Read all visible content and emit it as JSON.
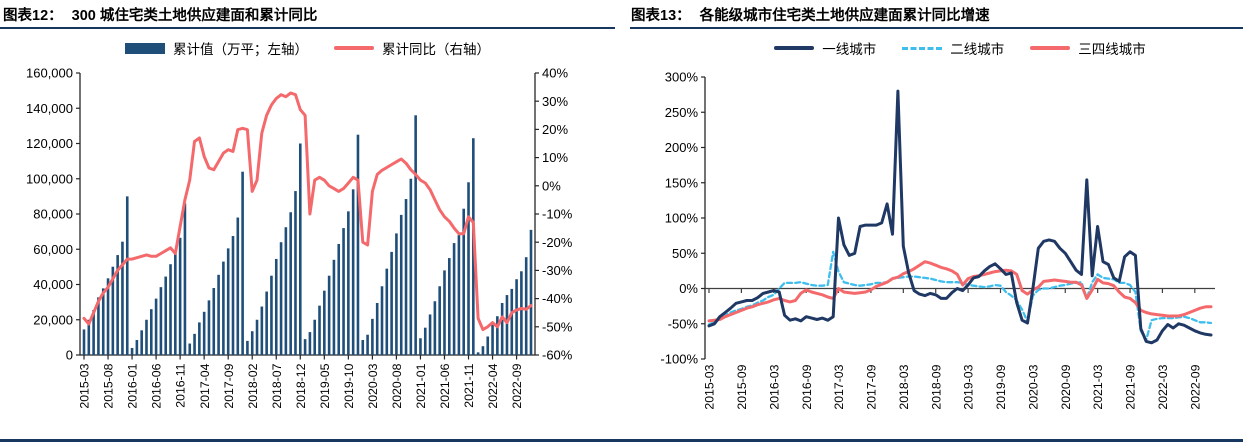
{
  "page": {
    "background": "#ffffff",
    "bottom_rule_color": "#17375e",
    "title_rule_color": "#17375e"
  },
  "panels": [
    {
      "heading": "图表12：",
      "title": "300 城住宅类土地供应建面和累计同比"
    },
    {
      "heading": "图表13：",
      "title": "各能级城市住宅类土地供应建面累计同比增速"
    }
  ],
  "chart_data": [
    {
      "id": "fig12",
      "type": "bar+line",
      "title": "300 城住宅类土地供应建面和累计同比",
      "x_start": "2015-03",
      "x_end": "2022-12",
      "freq": "monthly",
      "n_points": 94,
      "x_tick_every": 5,
      "x_tick_labels": [
        "2015-03",
        "2015-08",
        "2016-01",
        "2016-06",
        "2016-11",
        "2017-04",
        "2017-09",
        "2018-02",
        "2018-07",
        "2018-12",
        "2019-05",
        "2019-10",
        "2020-03",
        "2020-08",
        "2021-01",
        "2021-06",
        "2021-11",
        "2022-04",
        "2022-09"
      ],
      "left_axis": {
        "min": 0,
        "max": 160000,
        "step": 20000,
        "tick_labels": [
          "0",
          "20,000",
          "40,000",
          "60,000",
          "80,000",
          "100,000",
          "120,000",
          "140,000",
          "160,000"
        ]
      },
      "right_axis": {
        "min": -60,
        "max": 40,
        "step": 10,
        "tick_labels": [
          "-60%",
          "-50%",
          "-40%",
          "-30%",
          "-20%",
          "-10%",
          "0%",
          "10%",
          "20%",
          "30%",
          "40%"
        ]
      },
      "legend_position": "top",
      "grid": false,
      "series": [
        {
          "name": "累计值（万平；左轴）",
          "type": "bar",
          "axis": "left",
          "color": "#1F4E79",
          "values": [
            14500,
            20000,
            25500,
            32700,
            37800,
            43500,
            50100,
            56700,
            64300,
            90000,
            4000,
            8500,
            14000,
            20000,
            26000,
            32000,
            38500,
            44500,
            51500,
            57500,
            66500,
            86000,
            6500,
            12000,
            18500,
            24500,
            31000,
            38000,
            45500,
            53000,
            60500,
            67500,
            78000,
            104000,
            8000,
            13500,
            20000,
            27500,
            36000,
            45000,
            54500,
            64000,
            72500,
            81000,
            93000,
            120000,
            9000,
            13000,
            20000,
            28000,
            36500,
            45000,
            54000,
            63000,
            72000,
            81500,
            94000,
            125000,
            8500,
            11500,
            20500,
            29500,
            39000,
            49000,
            58500,
            69000,
            79500,
            88500,
            100000,
            136000,
            9500,
            15500,
            23000,
            30500,
            39000,
            48000,
            55000,
            63500,
            68000,
            83000,
            98000,
            123000,
            1500,
            5000,
            10500,
            17000,
            22000,
            29500,
            34000,
            37500,
            43000,
            47500,
            55500,
            71000
          ]
        },
        {
          "name": "累计同比（右轴）",
          "type": "line",
          "axis": "right",
          "color": "#F4696B",
          "values": [
            -47,
            -49,
            -45,
            -41,
            -38,
            -36,
            -33,
            -30,
            -28,
            -26,
            -26,
            -25.5,
            -25,
            -24.5,
            -25,
            -25,
            -24,
            -23,
            -22,
            -24,
            -14.5,
            -5,
            2,
            15.7,
            17,
            10.4,
            6.3,
            5.7,
            8.6,
            11.6,
            12.8,
            12.2,
            19.9,
            20.4,
            19.9,
            -2,
            2,
            18.7,
            25,
            28.7,
            31,
            32.3,
            31.6,
            32.9,
            32.3,
            27,
            25,
            -10,
            2,
            3,
            2,
            0,
            -1,
            -2,
            -1,
            1,
            3,
            2,
            -20,
            -21,
            -2,
            4,
            5.5,
            6.5,
            7.5,
            8.5,
            9.5,
            8,
            5.7,
            4,
            2,
            1,
            -1.4,
            -5,
            -8.5,
            -11,
            -12.6,
            -15,
            -17,
            -17,
            -11,
            -13,
            -47,
            -51,
            -50,
            -48.5,
            -50,
            -46.5,
            -48.5,
            -45,
            -44,
            -43.5,
            -43.8,
            -42.5
          ]
        }
      ]
    },
    {
      "id": "fig13",
      "type": "line",
      "title": "各能级城市住宅类土地供应建面累计同比增速",
      "x_start": "2015-03",
      "x_end": "2022-12",
      "freq": "monthly",
      "n_points": 94,
      "x_tick_every": 6,
      "x_tick_labels": [
        "2015-03",
        "2015-09",
        "2016-03",
        "2016-09",
        "2017-03",
        "2017-09",
        "2018-03",
        "2018-09",
        "2019-03",
        "2019-09",
        "2020-03",
        "2020-09",
        "2021-03",
        "2021-09",
        "2022-03",
        "2022-09"
      ],
      "y_axis": {
        "min": -100,
        "max": 300,
        "step": 50,
        "unit": "%",
        "tick_labels": [
          "-100%",
          "-50%",
          "0%",
          "50%",
          "100%",
          "150%",
          "200%",
          "250%",
          "300%"
        ]
      },
      "zero_line": true,
      "grid": false,
      "legend_position": "top",
      "series": [
        {
          "name": "一线城市",
          "type": "line",
          "style": "solid",
          "color": "#1F3864",
          "values": [
            -53,
            -50,
            -40,
            -34,
            -28,
            -21,
            -19,
            -17,
            -17,
            -13,
            -7,
            -5,
            -3,
            -5,
            -38,
            -45,
            -43,
            -46,
            -40,
            -42,
            -44,
            -42,
            -45,
            -40,
            100,
            62,
            47,
            50,
            88,
            90,
            90,
            90,
            93,
            120,
            77,
            280,
            60,
            22,
            -3,
            -8,
            -10,
            -7,
            -9,
            -14,
            -14,
            -6,
            0,
            -3,
            5,
            15,
            17,
            25,
            31,
            35,
            28,
            20,
            22,
            -20,
            -45,
            -49,
            0,
            57,
            67,
            69,
            67,
            57,
            50,
            38,
            26,
            20,
            154,
            18,
            88,
            38,
            34,
            15,
            10,
            45,
            52,
            47,
            -57,
            -75,
            -77,
            -73,
            -60,
            -51,
            -56,
            -50,
            -52,
            -56,
            -60,
            -63,
            -65,
            -66
          ]
        },
        {
          "name": "二线城市",
          "type": "line",
          "style": "dashed",
          "color": "#3FBEEE",
          "values": [
            -51,
            -48,
            -43,
            -38,
            -34,
            -31,
            -29,
            -26,
            -24,
            -20,
            -17,
            -12,
            -9,
            0,
            8,
            8,
            8,
            9,
            7,
            5,
            4,
            4,
            5,
            52,
            24,
            9,
            7,
            5,
            4,
            5,
            6,
            8,
            8,
            9,
            14,
            15,
            16,
            17,
            17,
            16,
            15,
            14,
            12,
            10,
            9,
            9,
            9,
            8,
            5,
            4,
            3,
            2,
            3,
            5,
            4,
            -5,
            -10,
            -17,
            -30,
            -47,
            -10,
            -2,
            0,
            0,
            2,
            4,
            5,
            7,
            8,
            9,
            -14,
            9,
            20,
            15,
            14,
            13,
            8,
            8,
            5,
            -5,
            -60,
            -73,
            -45,
            -43,
            -42,
            -42,
            -42,
            -41,
            -40,
            -42,
            -45,
            -48,
            -48,
            -49
          ]
        },
        {
          "name": "三四线城市",
          "type": "line",
          "style": "solid",
          "color": "#F4696B",
          "values": [
            -46,
            -45,
            -44,
            -40,
            -37,
            -34,
            -31,
            -28,
            -26,
            -23,
            -21,
            -19,
            -16,
            -14,
            -17,
            -19,
            -17,
            -7,
            -2,
            -5,
            -7,
            -9,
            -12,
            -14,
            0,
            -5,
            -6,
            -7,
            -6,
            -5,
            -2,
            3,
            6,
            9,
            14,
            16,
            21,
            24,
            28,
            33,
            38,
            36,
            33,
            30,
            28,
            25,
            20,
            5,
            14,
            17,
            18,
            20,
            22,
            24,
            25,
            26,
            25,
            20,
            -3,
            -8,
            -2,
            2,
            10,
            11,
            12,
            11,
            10,
            9,
            9,
            5,
            -14,
            -2,
            13,
            8,
            7,
            4,
            -5,
            -12,
            -14,
            -20,
            -31,
            -34,
            -36,
            -37,
            -38,
            -39,
            -39,
            -39,
            -37,
            -34,
            -31,
            -28,
            -26,
            -26
          ]
        }
      ]
    }
  ]
}
